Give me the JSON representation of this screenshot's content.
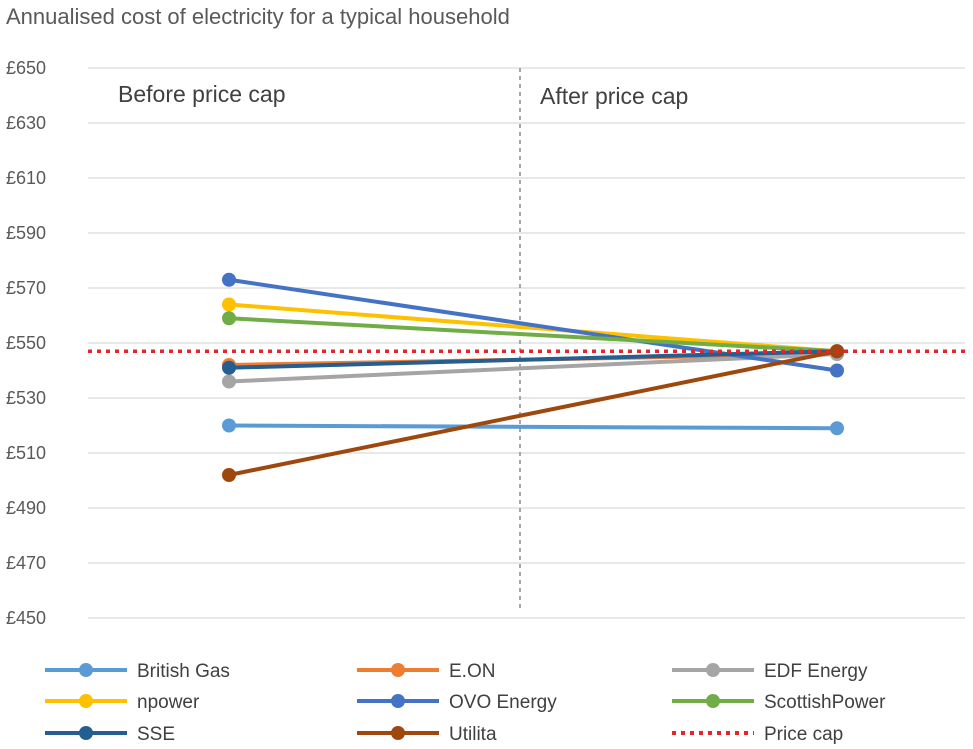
{
  "chart_data": {
    "type": "line",
    "title": "Annualised cost of electricity for a typical household",
    "categories": [
      "Before price cap",
      "After price cap"
    ],
    "ylim": [
      450,
      650
    ],
    "yticks": [
      "£650",
      "£630",
      "£610",
      "£590",
      "£570",
      "£550",
      "£530",
      "£510",
      "£490",
      "£470",
      "£450"
    ],
    "ytick_values": [
      650,
      630,
      610,
      590,
      570,
      550,
      530,
      510,
      490,
      470,
      450
    ],
    "grid": true,
    "legend_position": "bottom",
    "series": [
      {
        "name": "British Gas",
        "color": "#5b9bd5",
        "values": [
          520,
          519
        ]
      },
      {
        "name": "E.ON",
        "color": "#ed7d31",
        "values": [
          542,
          546
        ]
      },
      {
        "name": "EDF Energy",
        "color": "#a5a5a5",
        "values": [
          536,
          546
        ]
      },
      {
        "name": "npower",
        "color": "#ffc000",
        "values": [
          564,
          547
        ]
      },
      {
        "name": "OVO Energy",
        "color": "#4472c4",
        "values": [
          573,
          540
        ]
      },
      {
        "name": "ScottishPower",
        "color": "#70ad47",
        "values": [
          559,
          547
        ]
      },
      {
        "name": "SSE",
        "color": "#255e91",
        "values": [
          541,
          547
        ]
      },
      {
        "name": "Utilita",
        "color": "#9e480e",
        "values": [
          502,
          547
        ]
      }
    ],
    "reference_line": {
      "name": "Price cap",
      "color": "#e4262a",
      "value": 547
    }
  }
}
